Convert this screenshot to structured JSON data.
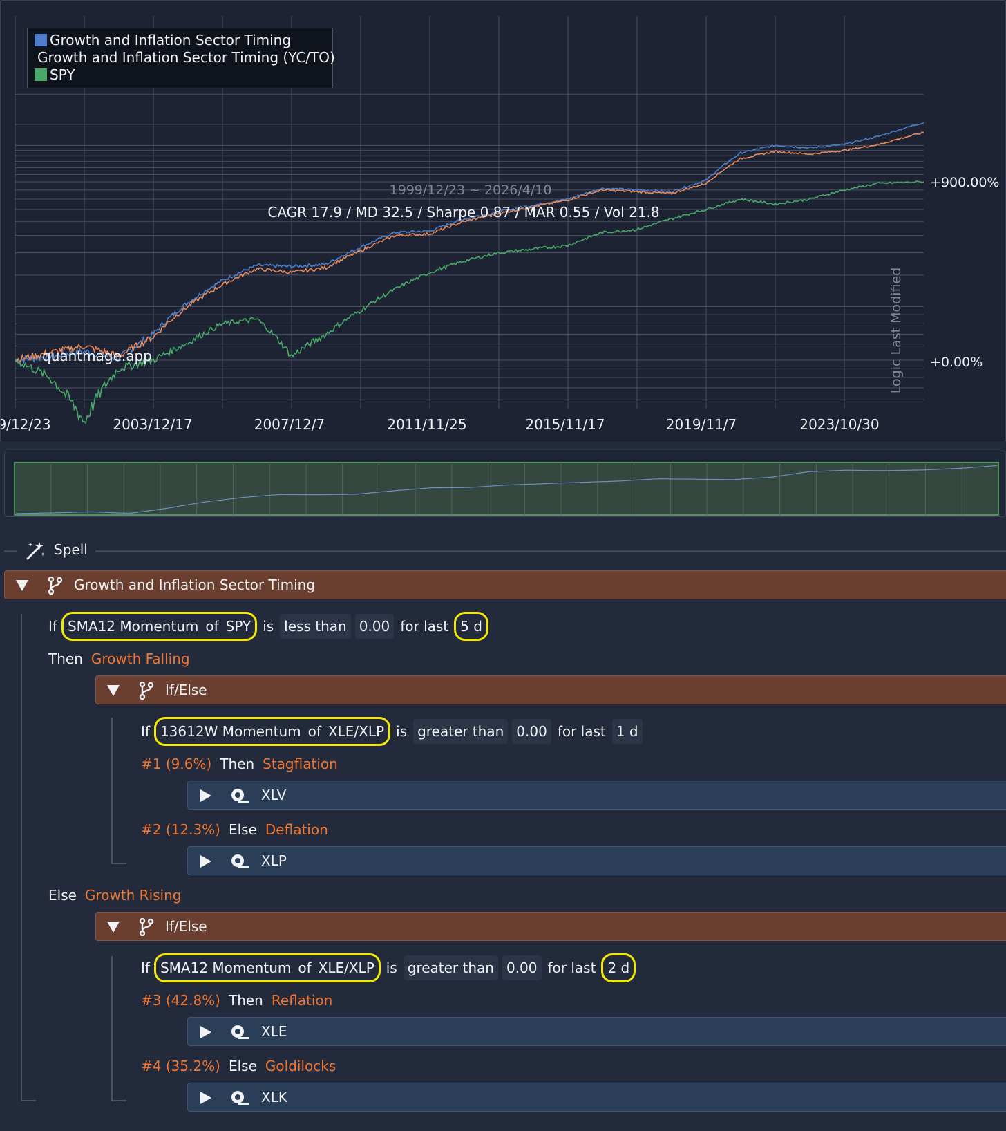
{
  "legend": [
    {
      "label": "Growth and Inflation Sector Timing",
      "color": "#4f7fca"
    },
    {
      "label": "Growth and Inflation Sector Timing (YC/TO)",
      "color": "#e88a5a"
    },
    {
      "label": "SPY",
      "color": "#4aa86a"
    }
  ],
  "chart_data": {
    "type": "line",
    "x_ticks": [
      "9/12/23",
      "2003/12/17",
      "2007/12/7",
      "2011/11/25",
      "2015/11/17",
      "2019/11/7",
      "2023/10/30"
    ],
    "y_ticks": [
      "+900.00%",
      "+0.00%"
    ],
    "date_range": "1999/12/23 ~ 2026/4/10",
    "stats": "CAGR 17.9 / MD 32.5 / Sharpe 0.87 / MAR 0.55 / Vol 21.8",
    "watermark": "quantmage.app",
    "side_label": "Logic Last Modified",
    "x_years": [
      2000,
      2001,
      2002,
      2003,
      2004,
      2005,
      2006,
      2007,
      2008,
      2009,
      2010,
      2011,
      2012,
      2013,
      2014,
      2015,
      2016,
      2017,
      2018,
      2019,
      2020,
      2021,
      2022,
      2023,
      2024,
      2025,
      2026.3
    ],
    "series": [
      {
        "name": "Growth and Inflation Sector Timing",
        "color": "#4f7fca",
        "values": [
          0,
          5,
          12,
          2,
          40,
          110,
          180,
          240,
          235,
          245,
          330,
          420,
          430,
          520,
          580,
          640,
          700,
          820,
          800,
          780,
          920,
          1350,
          1500,
          1450,
          1520,
          1700,
          2050
        ]
      },
      {
        "name": "Growth and Inflation Sector Timing (YC/TO)",
        "color": "#e88a5a",
        "values": [
          0,
          10,
          20,
          5,
          35,
          100,
          165,
          225,
          210,
          230,
          310,
          400,
          410,
          500,
          565,
          625,
          690,
          800,
          780,
          760,
          880,
          1250,
          1380,
          1330,
          1400,
          1520,
          1790
        ]
      },
      {
        "name": "SPY",
        "color": "#4aa86a",
        "values": [
          0,
          -20,
          -55,
          -10,
          0,
          25,
          60,
          70,
          5,
          40,
          90,
          150,
          210,
          260,
          300,
          320,
          340,
          420,
          440,
          520,
          600,
          700,
          650,
          700,
          800,
          880,
          900
        ]
      }
    ]
  },
  "spell": {
    "label": "Spell"
  },
  "tree": {
    "root": {
      "title": "Growth and Inflation Sector Timing"
    },
    "cond1": {
      "if": "If",
      "indicator": "SMA12 Momentum",
      "of": "of",
      "ticker": "SPY",
      "is": "is",
      "op": "less than",
      "value": "0.00",
      "for": "for last",
      "days": "5 d"
    },
    "then1": {
      "kw": "Then",
      "label": "Growth Falling"
    },
    "ifelse1": {
      "title": "If/Else"
    },
    "cond2": {
      "if": "If",
      "indicator": "13612W Momentum",
      "of": "of",
      "ticker": "XLE/XLP",
      "is": "is",
      "op": "greater than",
      "value": "0.00",
      "for": "for last",
      "days": "1 d"
    },
    "b1": {
      "num": "#1 (9.6%)",
      "kw": "Then",
      "label": "Stagflation",
      "asset": "XLV"
    },
    "b2": {
      "num": "#2 (12.3%)",
      "kw": "Else",
      "label": "Deflation",
      "asset": "XLP"
    },
    "else1": {
      "kw": "Else",
      "label": "Growth Rising"
    },
    "ifelse2": {
      "title": "If/Else"
    },
    "cond3": {
      "if": "If",
      "indicator": "SMA12 Momentum",
      "of": "of",
      "ticker": "XLE/XLP",
      "is": "is",
      "op": "greater than",
      "value": "0.00",
      "for": "for last",
      "days": "2 d"
    },
    "b3": {
      "num": "#3 (42.8%)",
      "kw": "Then",
      "label": "Reflation",
      "asset": "XLE"
    },
    "b4": {
      "num": "#4 (35.2%)",
      "kw": "Else",
      "label": "Goldilocks",
      "asset": "XLK"
    }
  }
}
